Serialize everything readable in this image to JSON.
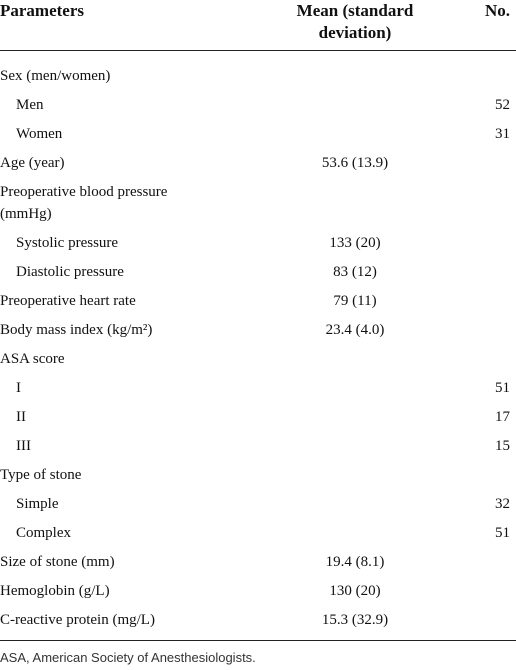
{
  "table": {
    "header": [
      "Parameters",
      "Mean (standard deviation)",
      "No."
    ],
    "rows": [
      {
        "label": "Sex (men/women)",
        "items": [
          {
            "label": "Men",
            "no": 52
          },
          {
            "label": "Women",
            "no": 31
          }
        ]
      },
      {
        "label": "Age (year)",
        "mean": "53.6 (13.9)"
      },
      {
        "label": "Preoperative blood pressure (mmHg)",
        "items": [
          {
            "label": "Systolic pressure",
            "mean": "133 (20)"
          },
          {
            "label": "Diastolic pressure",
            "mean": "83 (12)"
          }
        ]
      },
      {
        "label": "Preoperative heart rate",
        "mean": "79 (11)"
      },
      {
        "label": "Body mass index (kg/m²)",
        "mean": "23.4 (4.0)"
      },
      {
        "label": "ASA score",
        "items": [
          {
            "label": "I",
            "no": 51
          },
          {
            "label": "II",
            "no": 17
          },
          {
            "label": "III",
            "no": 15
          }
        ]
      },
      {
        "label": "Type of stone",
        "items": [
          {
            "label": "Simple",
            "no": 32
          },
          {
            "label": "Complex",
            "no": 51
          }
        ]
      },
      {
        "label": "Size of stone (mm)",
        "mean": "19.4 (8.1)"
      },
      {
        "label": "Hemoglobin (g/L)",
        "mean": "130 (20)"
      },
      {
        "label": "C-reactive protein (mg/L)",
        "mean": "15.3 (32.9)"
      }
    ]
  },
  "footnote": "ASA, American Society of Anesthesiologists."
}
